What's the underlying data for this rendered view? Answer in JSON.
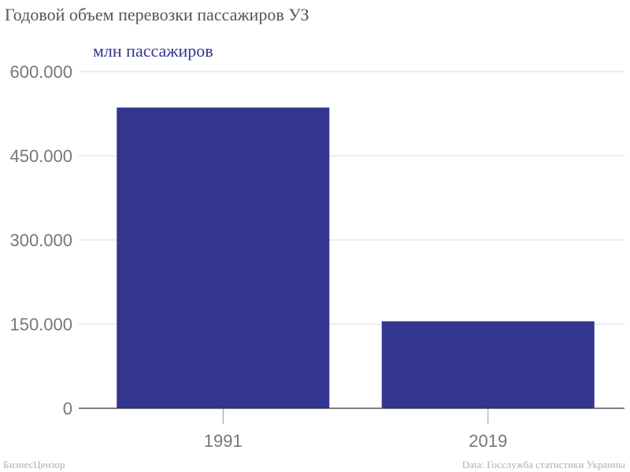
{
  "title": "Годовой объем перевозки пассажиров УЗ",
  "footer": {
    "left": "БизнесЦензор",
    "right": "Data: Госслужба статистики Украины"
  },
  "colors": {
    "bar": "#33368f",
    "grid": "#d9d9d9",
    "axis": "#333333",
    "tick_text": "#777777",
    "unit_text": "#33368f"
  },
  "chart_data": {
    "type": "bar",
    "title": "Годовой объем перевозки пассажиров УЗ",
    "ylabel": "млн пассажиров",
    "categories": [
      "1991",
      "2019"
    ],
    "values": [
      536.0,
      155.0
    ],
    "ylim": [
      0,
      600
    ],
    "yticks": [
      0,
      150,
      300,
      450,
      600
    ],
    "ytick_labels": [
      "0",
      "150.000",
      "300.000",
      "450.000",
      "600.000"
    ],
    "grid": true,
    "legend": "none"
  }
}
